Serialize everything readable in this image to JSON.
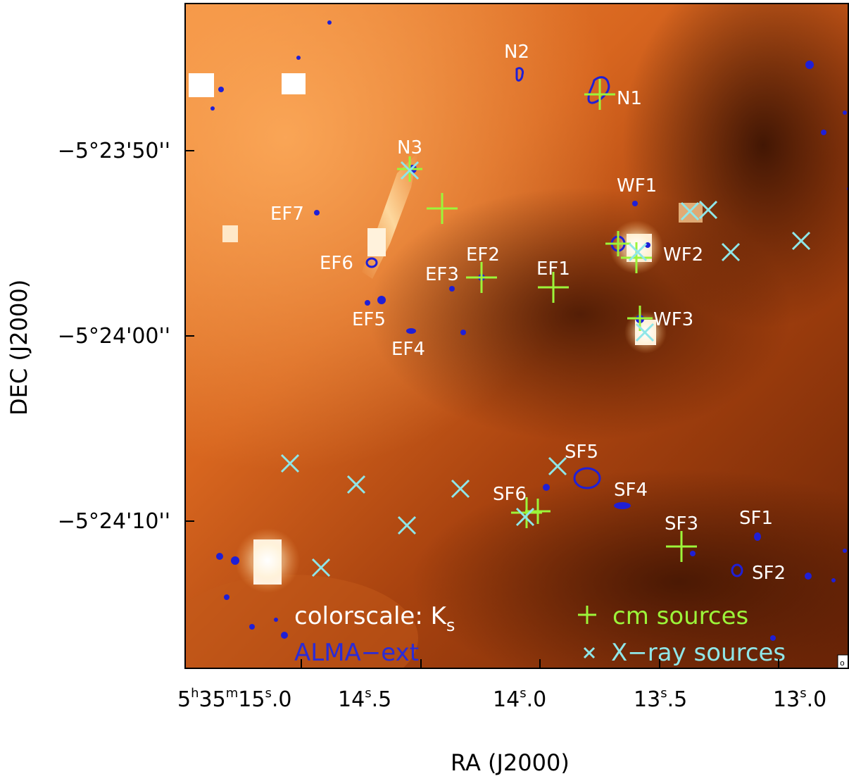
{
  "axes": {
    "x_label": "RA (J2000)",
    "y_label": "DEC (J2000)",
    "x_ticks": [
      {
        "h": "5",
        "m": "35",
        "s": "15",
        "frac": "0"
      },
      {
        "s": "14",
        "frac": "5"
      },
      {
        "s": "14",
        "frac": "0"
      },
      {
        "s": "13",
        "frac": "5"
      },
      {
        "s": "13",
        "frac": "0"
      }
    ],
    "y_ticks": [
      "−5°23'50''",
      "−5°24'00''",
      "−5°24'10''"
    ]
  },
  "legend": {
    "colorscale_text": "colorscale: K",
    "colorscale_sub": "s",
    "alma_text": "ALMA−ext",
    "cm_text": "cm sources",
    "xray_text": "X−ray sources",
    "cm_color": "#9cf53a",
    "xray_color": "#8fe6e8",
    "alma_color": "#2b2bd6"
  },
  "source_labels": [
    "N1",
    "N2",
    "N3",
    "EF1",
    "EF2",
    "EF3",
    "EF4",
    "EF5",
    "EF6",
    "EF7",
    "WF1",
    "WF2",
    "WF3",
    "SF1",
    "SF2",
    "SF3",
    "SF4",
    "SF5",
    "SF6"
  ],
  "corner_mark": "o"
}
